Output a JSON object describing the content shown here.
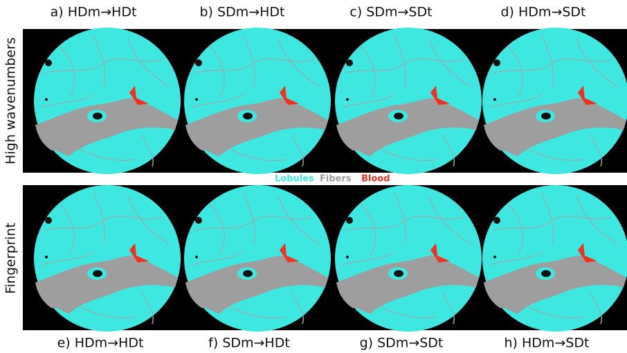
{
  "panels": [
    {
      "label": "a) HDm→HDt"
    },
    {
      "label": "b) SDm→HDt"
    },
    {
      "label": "c)  SDm→SDt"
    },
    {
      "label": "d) HDm→SDt"
    },
    {
      "label": "e) HDm→HDt"
    },
    {
      "label": "f) SDm→HDt"
    },
    {
      "label": "g) SDm→SDt"
    },
    {
      "label": "h) HDm→SDt"
    }
  ],
  "rows": [
    {
      "label": "High wavenumbers"
    },
    {
      "label": "Fingerprint"
    }
  ],
  "legend": [
    "Lobules",
    "Fibers",
    "Blood"
  ]
}
